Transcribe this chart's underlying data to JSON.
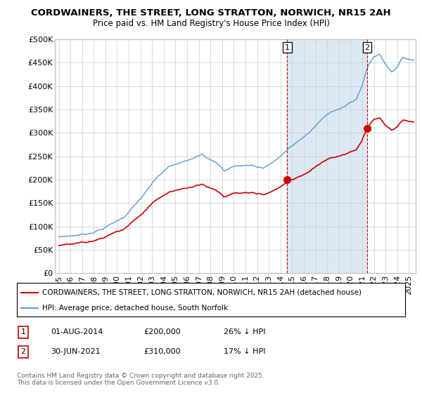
{
  "title1": "CORDWAINERS, THE STREET, LONG STRATTON, NORWICH, NR15 2AH",
  "title2": "Price paid vs. HM Land Registry's House Price Index (HPI)",
  "hpi_label": "HPI: Average price, detached house, South Norfolk",
  "property_label": "CORDWAINERS, THE STREET, LONG STRATTON, NORWICH, NR15 2AH (detached house)",
  "transaction1": {
    "date": "01-AUG-2014",
    "price": 200000,
    "pct": "26%",
    "dir": "↓"
  },
  "transaction2": {
    "date": "30-JUN-2021",
    "price": 310000,
    "pct": "17%",
    "dir": "↓"
  },
  "footer": "Contains HM Land Registry data © Crown copyright and database right 2025.\nThis data is licensed under the Open Government Licence v3.0.",
  "hpi_color": "#5b9bd5",
  "property_color": "#cc0000",
  "vline_color": "#cc0000",
  "shade_color": "#dce9f5",
  "ylim": [
    0,
    500000
  ],
  "yticks": [
    0,
    50000,
    100000,
    150000,
    200000,
    250000,
    300000,
    350000,
    400000,
    450000,
    500000
  ],
  "xstart_year": 1995,
  "xend_year": 2025
}
